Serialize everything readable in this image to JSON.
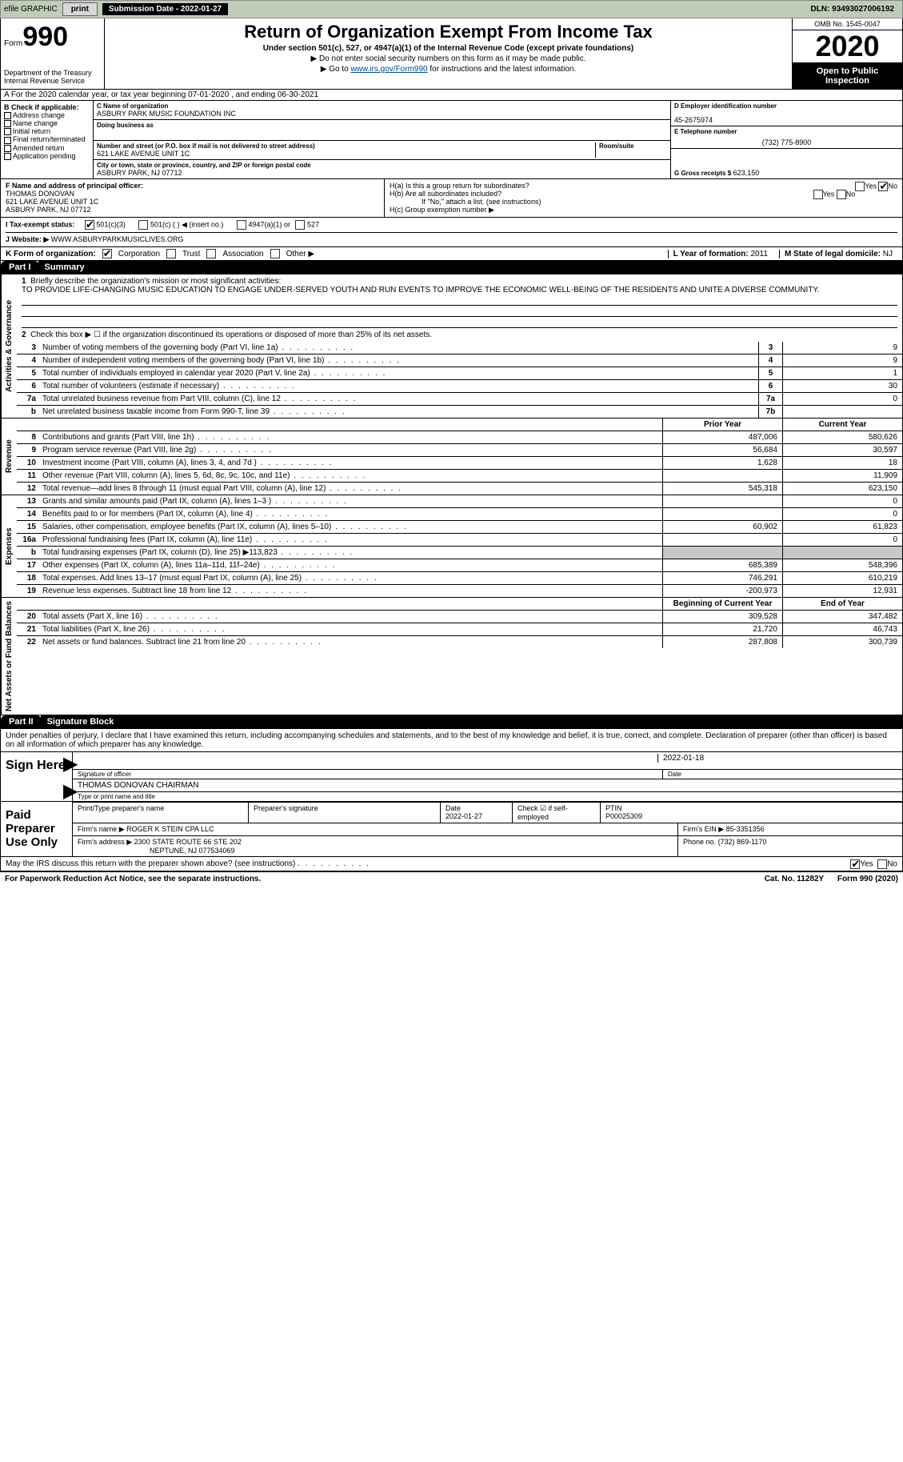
{
  "topbar": {
    "efile": "efile GRAPHIC",
    "print": "print",
    "sub_date_label": "Submission Date - 2022-01-27",
    "dln": "DLN: 93493027006192"
  },
  "header": {
    "form_label": "Form",
    "form_num": "990",
    "dept": "Department of the Treasury",
    "irs": "Internal Revenue Service",
    "title": "Return of Organization Exempt From Income Tax",
    "subtitle": "Under section 501(c), 527, or 4947(a)(1) of the Internal Revenue Code (except private foundations)",
    "note1": "▶ Do not enter social security numbers on this form as it may be made public.",
    "note2_pre": "▶ Go to ",
    "note2_link": "www.irs.gov/Form990",
    "note2_post": " for instructions and the latest information.",
    "omb": "OMB No. 1545-0047",
    "year": "2020",
    "otp": "Open to Public Inspection"
  },
  "a_line": "A For the 2020 calendar year, or tax year beginning 07-01-2020   , and ending 06-30-2021",
  "col_b": {
    "header": "B Check if applicable:",
    "items": [
      "Address change",
      "Name change",
      "Initial return",
      "Final return/terminated",
      "Amended return",
      "Application pending"
    ]
  },
  "col_c": {
    "c_label": "C Name of organization",
    "c_name": "ASBURY PARK MUSIC FOUNDATION INC",
    "dba_label": "Doing business as",
    "addr_label": "Number and street (or P.O. box if mail is not delivered to street address)",
    "addr": "621 LAKE AVENUE UNIT 1C",
    "room_label": "Room/suite",
    "city_label": "City or town, state or province, country, and ZIP or foreign postal code",
    "city": "ASBURY PARK, NJ  07712"
  },
  "col_d": {
    "d_label": "D Employer identification number",
    "ein": "45-2675974",
    "e_label": "E Telephone number",
    "phone": "(732) 775-8900",
    "g_label": "G Gross receipts $",
    "g_val": "623,150"
  },
  "fg": {
    "f_label": "F Name and address of principal officer:",
    "f_name": "THOMAS DONOVAN",
    "f_addr1": "621 LAKE AVENUE UNIT 1C",
    "f_addr2": "ASBURY PARK, NJ  07712",
    "ha": "H(a)  Is this a group return for subordinates?",
    "hb": "H(b)  Are all subordinates included?",
    "hb_note": "If \"No,\" attach a list. (see instructions)",
    "hc": "H(c)  Group exemption number ▶",
    "yes": "Yes",
    "no": "No"
  },
  "line_i": {
    "label": "I  Tax-exempt status:",
    "opts": [
      "501(c)(3)",
      "501(c) (  ) ◀ (insert no.)",
      "4947(a)(1) or",
      "527"
    ]
  },
  "line_j": {
    "label": "J  Website: ▶",
    "val": "WWW.ASBURYPARKMUSICLIVES.ORG"
  },
  "line_k": {
    "label": "K Form of organization:",
    "opts": [
      "Corporation",
      "Trust",
      "Association",
      "Other ▶"
    ],
    "l_label": "L Year of formation:",
    "l_val": "2011",
    "m_label": "M State of legal domicile:",
    "m_val": "NJ"
  },
  "part1": {
    "hdr": "Part I",
    "title": "Summary",
    "q1_label": "Briefly describe the organization's mission or most significant activities:",
    "q1_text": "TO PROVIDE LIFE-CHANGING MUSIC EDUCATION TO ENGAGE UNDER-SERVED YOUTH AND RUN EVENTS TO IMPROVE THE ECONOMIC WELL-BEING OF THE RESIDENTS AND UNITE A DIVERSE COMMUNITY.",
    "q2": "Check this box ▶ ☐  if the organization discontinued its operations or disposed of more than 25% of its net assets.",
    "gov_rows": [
      {
        "n": "3",
        "t": "Number of voting members of the governing body (Part VI, line 1a)",
        "box": "3",
        "v": "9"
      },
      {
        "n": "4",
        "t": "Number of independent voting members of the governing body (Part VI, line 1b)",
        "box": "4",
        "v": "9"
      },
      {
        "n": "5",
        "t": "Total number of individuals employed in calendar year 2020 (Part V, line 2a)",
        "box": "5",
        "v": "1"
      },
      {
        "n": "6",
        "t": "Total number of volunteers (estimate if necessary)",
        "box": "6",
        "v": "30"
      },
      {
        "n": "7a",
        "t": "Total unrelated business revenue from Part VIII, column (C), line 12",
        "box": "7a",
        "v": "0"
      },
      {
        "n": "b",
        "t": "Net unrelated business taxable income from Form 990-T, line 39",
        "box": "7b",
        "v": ""
      }
    ],
    "col_hdr_prior": "Prior Year",
    "col_hdr_curr": "Current Year",
    "revenue_rows": [
      {
        "n": "8",
        "t": "Contributions and grants (Part VIII, line 1h)",
        "v1": "487,006",
        "v2": "580,626"
      },
      {
        "n": "9",
        "t": "Program service revenue (Part VIII, line 2g)",
        "v1": "56,684",
        "v2": "30,597"
      },
      {
        "n": "10",
        "t": "Investment income (Part VIII, column (A), lines 3, 4, and 7d )",
        "v1": "1,628",
        "v2": "18"
      },
      {
        "n": "11",
        "t": "Other revenue (Part VIII, column (A), lines 5, 6d, 8c, 9c, 10c, and 11e)",
        "v1": "",
        "v2": "11,909"
      },
      {
        "n": "12",
        "t": "Total revenue—add lines 8 through 11 (must equal Part VIII, column (A), line 12)",
        "v1": "545,318",
        "v2": "623,150"
      }
    ],
    "expense_rows": [
      {
        "n": "13",
        "t": "Grants and similar amounts paid (Part IX, column (A), lines 1–3 )",
        "v1": "",
        "v2": "0"
      },
      {
        "n": "14",
        "t": "Benefits paid to or for members (Part IX, column (A), line 4)",
        "v1": "",
        "v2": "0"
      },
      {
        "n": "15",
        "t": "Salaries, other compensation, employee benefits (Part IX, column (A), lines 5–10)",
        "v1": "60,902",
        "v2": "61,823"
      },
      {
        "n": "16a",
        "t": "Professional fundraising fees (Part IX, column (A), line 11e)",
        "v1": "",
        "v2": "0"
      },
      {
        "n": "b",
        "t": "Total fundraising expenses (Part IX, column (D), line 25) ▶113,823",
        "v1": "shade",
        "v2": "shade"
      },
      {
        "n": "17",
        "t": "Other expenses (Part IX, column (A), lines 11a–11d, 11f–24e)",
        "v1": "685,389",
        "v2": "548,396"
      },
      {
        "n": "18",
        "t": "Total expenses. Add lines 13–17 (must equal Part IX, column (A), line 25)",
        "v1": "746,291",
        "v2": "610,219"
      },
      {
        "n": "19",
        "t": "Revenue less expenses. Subtract line 18 from line 12",
        "v1": "-200,973",
        "v2": "12,931"
      }
    ],
    "na_hdr1": "Beginning of Current Year",
    "na_hdr2": "End of Year",
    "na_rows": [
      {
        "n": "20",
        "t": "Total assets (Part X, line 16)",
        "v1": "309,528",
        "v2": "347,482"
      },
      {
        "n": "21",
        "t": "Total liabilities (Part X, line 26)",
        "v1": "21,720",
        "v2": "46,743"
      },
      {
        "n": "22",
        "t": "Net assets or fund balances. Subtract line 21 from line 20",
        "v1": "287,808",
        "v2": "300,739"
      }
    ],
    "side_gov": "Activities & Governance",
    "side_rev": "Revenue",
    "side_exp": "Expenses",
    "side_na": "Net Assets or Fund Balances"
  },
  "part2": {
    "hdr": "Part II",
    "title": "Signature Block",
    "decl": "Under penalties of perjury, I declare that I have examined this return, including accompanying schedules and statements, and to the best of my knowledge and belief, it is true, correct, and complete. Declaration of preparer (other than officer) is based on all information of which preparer has any knowledge.",
    "sign_here": "Sign Here",
    "sig_officer": "Signature of officer",
    "sig_date": "2022-01-18",
    "date_lbl": "Date",
    "officer_name": "THOMAS DONOVAN  CHAIRMAN",
    "officer_type": "Type or print name and title",
    "paid": "Paid Preparer Use Only",
    "prep_name_lbl": "Print/Type preparer's name",
    "prep_sig_lbl": "Preparer's signature",
    "prep_date_lbl": "Date",
    "prep_date": "2022-01-27",
    "check_if": "Check ☑ if self-employed",
    "ptin_lbl": "PTIN",
    "ptin": "P00025309",
    "firm_name_lbl": "Firm's name   ▶",
    "firm_name": "ROGER K STEIN CPA LLC",
    "firm_ein_lbl": "Firm's EIN ▶",
    "firm_ein": "85-3351356",
    "firm_addr_lbl": "Firm's address ▶",
    "firm_addr1": "2300 STATE ROUTE 66 STE 202",
    "firm_addr2": "NEPTUNE, NJ  077534069",
    "phone_lbl": "Phone no.",
    "phone": "(732) 869-1170",
    "discuss": "May the IRS discuss this return with the preparer shown above? (see instructions)"
  },
  "footer": {
    "pra": "For Paperwork Reduction Act Notice, see the separate instructions.",
    "cat": "Cat. No. 11282Y",
    "form": "Form 990 (2020)"
  }
}
